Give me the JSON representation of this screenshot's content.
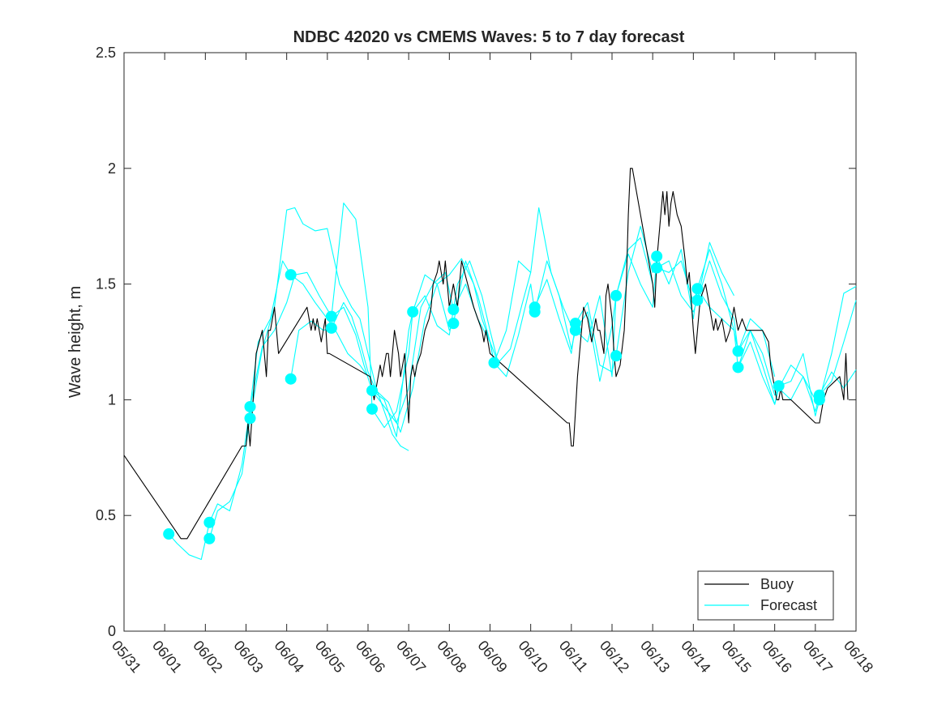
{
  "chart_data": {
    "type": "line",
    "title": "NDBC 42020 vs CMEMS Waves: 5 to 7 day forecast",
    "xlabel": "",
    "ylabel": "Wave height, m",
    "xlim": [
      0,
      18
    ],
    "ylim": [
      0,
      2.5
    ],
    "x_ticks": [
      {
        "value": 0,
        "label": "05/31"
      },
      {
        "value": 1,
        "label": "06/01"
      },
      {
        "value": 2,
        "label": "06/02"
      },
      {
        "value": 3,
        "label": "06/03"
      },
      {
        "value": 4,
        "label": "06/04"
      },
      {
        "value": 5,
        "label": "06/05"
      },
      {
        "value": 6,
        "label": "06/06"
      },
      {
        "value": 7,
        "label": "06/07"
      },
      {
        "value": 8,
        "label": "06/08"
      },
      {
        "value": 9,
        "label": "06/09"
      },
      {
        "value": 10,
        "label": "06/10"
      },
      {
        "value": 11,
        "label": "06/11"
      },
      {
        "value": 12,
        "label": "06/12"
      },
      {
        "value": 13,
        "label": "06/13"
      },
      {
        "value": 14,
        "label": "06/14"
      },
      {
        "value": 15,
        "label": "06/15"
      },
      {
        "value": 16,
        "label": "06/16"
      },
      {
        "value": 17,
        "label": "06/17"
      },
      {
        "value": 18,
        "label": "06/18"
      }
    ],
    "y_ticks": [
      {
        "value": 0,
        "label": "0"
      },
      {
        "value": 0.5,
        "label": "0.5"
      },
      {
        "value": 1,
        "label": "1"
      },
      {
        "value": 1.5,
        "label": "1.5"
      },
      {
        "value": 2,
        "label": "2"
      },
      {
        "value": 2.5,
        "label": "2.5"
      }
    ],
    "grid": false,
    "legend": {
      "position": "bottom-right",
      "entries": [
        "Buoy",
        "Forecast"
      ]
    },
    "colors": {
      "buoy": "#000000",
      "forecast": "#00ffff"
    },
    "series": [
      {
        "name": "Buoy",
        "style": "line",
        "x": [
          0,
          1.4,
          1.55,
          2.9,
          3.0,
          3.05,
          3.1,
          3.25,
          3.4,
          3.5,
          3.55,
          3.6,
          3.7,
          3.8,
          4.5,
          4.55,
          4.6,
          4.65,
          4.7,
          4.75,
          4.8,
          4.85,
          4.9,
          4.95,
          5.0,
          5.05,
          6.05,
          6.15,
          6.25,
          6.3,
          6.35,
          6.45,
          6.5,
          6.55,
          6.6,
          6.65,
          6.75,
          6.8,
          6.9,
          7.0,
          7.05,
          7.1,
          7.15,
          7.2,
          7.3,
          7.4,
          7.5,
          7.55,
          7.6,
          7.7,
          7.75,
          7.8,
          7.85,
          7.9,
          8.0,
          8.1,
          8.15,
          8.2,
          8.3,
          8.45,
          8.6,
          8.7,
          8.8,
          8.85,
          8.9,
          9.0,
          10.9,
          10.95,
          11.0,
          11.05,
          11.1,
          11.15,
          11.2,
          11.25,
          11.3,
          11.4,
          11.45,
          11.5,
          11.6,
          11.65,
          11.7,
          11.8,
          11.85,
          11.9,
          12.0,
          12.05,
          12.1,
          12.2,
          12.3,
          12.35,
          12.4,
          12.45,
          12.5,
          13.0,
          13.05,
          13.1,
          13.2,
          13.25,
          13.3,
          13.35,
          13.4,
          13.45,
          13.5,
          13.6,
          13.7,
          13.8,
          13.85,
          13.9,
          14.0,
          14.05,
          14.1,
          14.15,
          14.2,
          14.3,
          14.35,
          14.4,
          14.5,
          14.55,
          14.6,
          14.7,
          14.75,
          14.8,
          14.9,
          15.0,
          15.1,
          15.2,
          15.3,
          15.5,
          15.7,
          15.85,
          15.9,
          15.95,
          16.0,
          16.05,
          16.1,
          16.15,
          16.2,
          16.3,
          16.4,
          17.0,
          17.05,
          17.1,
          17.2,
          17.3,
          17.6,
          17.7,
          17.75,
          17.8
        ],
        "values": [
          0.76,
          0.4,
          0.4,
          0.8,
          0.8,
          0.9,
          0.8,
          1.2,
          1.3,
          1.1,
          1.3,
          1.3,
          1.4,
          1.2,
          1.4,
          1.35,
          1.3,
          1.35,
          1.3,
          1.35,
          1.3,
          1.25,
          1.3,
          1.35,
          1.2,
          1.2,
          1.1,
          1.0,
          1.1,
          1.15,
          1.1,
          1.2,
          1.2,
          1.1,
          1.2,
          1.3,
          1.2,
          1.1,
          1.2,
          0.9,
          1.1,
          1.15,
          1.1,
          1.15,
          1.2,
          1.3,
          1.35,
          1.4,
          1.5,
          1.55,
          1.6,
          1.55,
          1.5,
          1.6,
          1.4,
          1.5,
          1.45,
          1.4,
          1.6,
          1.5,
          1.4,
          1.35,
          1.3,
          1.25,
          1.3,
          1.2,
          0.9,
          0.9,
          0.8,
          0.8,
          0.95,
          1.1,
          1.2,
          1.3,
          1.4,
          1.35,
          1.3,
          1.25,
          1.35,
          1.3,
          1.3,
          1.2,
          1.45,
          1.5,
          1.35,
          1.2,
          1.1,
          1.15,
          1.3,
          1.5,
          1.8,
          2.0,
          2.0,
          1.5,
          1.4,
          1.6,
          1.8,
          1.9,
          1.8,
          1.9,
          1.75,
          1.85,
          1.9,
          1.8,
          1.75,
          1.6,
          1.5,
          1.55,
          1.3,
          1.2,
          1.3,
          1.4,
          1.45,
          1.5,
          1.45,
          1.4,
          1.3,
          1.35,
          1.3,
          1.35,
          1.3,
          1.25,
          1.3,
          1.4,
          1.3,
          1.35,
          1.3,
          1.3,
          1.3,
          1.25,
          1.15,
          1.1,
          1.05,
          1.0,
          1.0,
          1.05,
          1.0,
          1.0,
          1.0,
          0.9,
          0.9,
          0.9,
          1.0,
          1.05,
          1.1,
          1.0,
          1.2,
          1.0
        ]
      },
      {
        "name": "Forecast",
        "style": "line",
        "x": [
          1.1,
          1.3,
          1.6,
          1.9,
          2.1,
          2.3,
          2.6,
          2.9,
          3.1,
          3.3,
          3.6,
          3.9,
          4.1,
          4.4,
          4.7,
          5.0,
          5.2,
          5.5,
          5.8,
          6.0
        ],
        "values": [
          0.42,
          0.38,
          0.33,
          0.31,
          0.47,
          0.55,
          0.52,
          0.72,
          0.97,
          1.25,
          1.35,
          1.6,
          1.54,
          1.5,
          1.42,
          1.35,
          1.3,
          1.2,
          1.15,
          1.1
        ]
      },
      {
        "name": "Forecast",
        "style": "line",
        "x": [
          2.1,
          2.3,
          2.6,
          2.9,
          3.1,
          3.4,
          3.7,
          4.0,
          4.2,
          4.4,
          4.7,
          5.0,
          5.3,
          5.6,
          5.8,
          6.0,
          6.2,
          6.4,
          6.6,
          6.8,
          7.0
        ],
        "values": [
          0.4,
          0.52,
          0.56,
          0.68,
          0.92,
          1.22,
          1.4,
          1.82,
          1.83,
          1.76,
          1.73,
          1.74,
          1.5,
          1.4,
          1.35,
          1.2,
          1.05,
          0.95,
          0.85,
          0.8,
          0.78
        ]
      },
      {
        "name": "Forecast",
        "style": "line",
        "x": [
          3.1,
          3.4,
          3.7,
          4.0,
          4.2,
          4.5,
          4.8,
          5.1,
          5.4,
          5.7,
          5.9,
          6.1,
          6.4,
          6.7,
          7.0,
          7.3,
          7.6,
          7.9,
          8.1
        ],
        "values": [
          0.97,
          1.23,
          1.3,
          1.42,
          1.54,
          1.55,
          1.45,
          1.36,
          1.4,
          1.28,
          1.15,
          1.04,
          0.97,
          0.9,
          1.05,
          1.4,
          1.5,
          1.55,
          1.39
        ]
      },
      {
        "name": "Forecast",
        "style": "line",
        "x": [
          4.1,
          4.3,
          4.6,
          4.9,
          5.1,
          5.4,
          5.6,
          5.8,
          6.0,
          6.2,
          6.5,
          6.8,
          7.1,
          7.4,
          7.7,
          8.0,
          8.3,
          8.6,
          8.8,
          9.0,
          9.2
        ],
        "values": [
          1.09,
          1.3,
          1.34,
          1.3,
          1.31,
          1.42,
          1.36,
          1.25,
          1.12,
          1.04,
          0.99,
          0.86,
          1.05,
          1.35,
          1.5,
          1.54,
          1.61,
          1.5,
          1.35,
          1.25,
          1.16
        ]
      },
      {
        "name": "Forecast",
        "style": "line",
        "x": [
          5.1,
          5.4,
          5.7,
          6.0,
          6.1,
          6.4,
          6.7,
          7.0,
          7.1,
          7.4,
          7.7,
          8.0,
          8.2,
          8.5,
          8.8,
          9.0,
          9.2,
          9.5,
          9.8,
          10.0
        ],
        "values": [
          1.36,
          1.85,
          1.78,
          1.4,
          0.96,
          0.88,
          0.95,
          1.2,
          1.38,
          1.45,
          1.32,
          1.28,
          1.5,
          1.6,
          1.45,
          1.3,
          1.16,
          1.22,
          1.42,
          1.55
        ]
      },
      {
        "name": "Forecast",
        "style": "line",
        "x": [
          6.1,
          6.4,
          6.7,
          7.0,
          7.1,
          7.4,
          7.7,
          8.0,
          8.1,
          8.4,
          8.7,
          9.0,
          9.1,
          9.4,
          9.7,
          10.0,
          10.2,
          10.5,
          10.8,
          11.0
        ],
        "values": [
          1.04,
          1.0,
          0.84,
          1.3,
          1.38,
          1.54,
          1.5,
          1.3,
          1.33,
          1.6,
          1.45,
          1.25,
          1.16,
          1.3,
          1.6,
          1.55,
          1.83,
          1.55,
          1.4,
          1.32
        ]
      },
      {
        "name": "Forecast",
        "style": "line",
        "x": [
          8.1,
          8.4,
          8.7,
          9.0,
          9.1,
          9.4,
          9.7,
          10.0,
          10.1,
          10.4,
          10.7,
          11.0,
          11.1,
          11.4,
          11.7,
          12.0,
          12.1,
          12.4,
          12.7,
          13.0
        ],
        "values": [
          1.39,
          1.5,
          1.35,
          1.25,
          1.16,
          1.1,
          1.28,
          1.5,
          1.38,
          1.6,
          1.45,
          1.22,
          1.3,
          1.25,
          1.45,
          1.1,
          1.45,
          1.65,
          1.7,
          1.5
        ]
      },
      {
        "name": "Forecast",
        "style": "line",
        "x": [
          10.1,
          10.4,
          10.7,
          11.0,
          11.1,
          11.4,
          11.7,
          12.0,
          12.1,
          12.4,
          12.7,
          13.0,
          13.1,
          13.4,
          13.7,
          14.0,
          14.1,
          14.4,
          14.7,
          15.0
        ],
        "values": [
          1.4,
          1.52,
          1.35,
          1.2,
          1.33,
          1.42,
          1.15,
          1.12,
          1.19,
          1.55,
          1.75,
          1.55,
          1.57,
          1.6,
          1.45,
          1.38,
          1.43,
          1.68,
          1.55,
          1.45
        ]
      },
      {
        "name": "Forecast",
        "style": "line",
        "x": [
          11.1,
          11.4,
          11.7,
          12.0,
          12.1,
          12.4,
          12.7,
          13.0,
          13.1,
          13.4,
          13.7,
          14.0,
          14.1,
          14.4,
          14.7,
          15.0,
          15.1,
          15.4,
          15.7,
          16.0
        ],
        "values": [
          1.3,
          1.38,
          1.08,
          1.32,
          1.45,
          1.63,
          1.5,
          1.4,
          1.62,
          1.5,
          1.65,
          1.35,
          1.48,
          1.4,
          1.35,
          1.3,
          1.21,
          1.35,
          1.3,
          1.1
        ]
      },
      {
        "name": "Forecast",
        "style": "line",
        "x": [
          13.1,
          13.4,
          13.7,
          14.0,
          14.1,
          14.4,
          14.7,
          15.0,
          15.1,
          15.4,
          15.7,
          16.0,
          16.1,
          16.4,
          16.7,
          17.0,
          17.1,
          17.4,
          17.7,
          18.0
        ],
        "values": [
          1.57,
          1.55,
          1.6,
          1.42,
          1.48,
          1.65,
          1.5,
          1.3,
          1.14,
          1.3,
          1.15,
          0.98,
          1.06,
          1.08,
          1.2,
          0.93,
          1.0,
          1.2,
          1.46,
          1.49
        ]
      },
      {
        "name": "Forecast",
        "style": "line",
        "x": [
          14.1,
          14.4,
          14.7,
          15.0,
          15.1,
          15.4,
          15.7,
          16.0,
          16.1,
          16.4,
          16.7,
          17.0,
          17.1,
          17.4,
          17.7,
          18.0
        ],
        "values": [
          1.43,
          1.6,
          1.45,
          1.35,
          1.21,
          1.3,
          1.2,
          1.02,
          1.05,
          1.15,
          1.1,
          0.95,
          1.02,
          1.08,
          1.25,
          1.43
        ]
      },
      {
        "name": "Forecast",
        "style": "line",
        "x": [
          15.1,
          15.4,
          15.7,
          16.0,
          16.1,
          16.4,
          16.7,
          17.0,
          17.1,
          17.4,
          17.7,
          18.0
        ],
        "values": [
          1.14,
          1.25,
          1.1,
          0.98,
          1.05,
          1.0,
          1.1,
          1.0,
          1.02,
          1.12,
          1.05,
          1.13
        ]
      },
      {
        "name": "Forecast",
        "style": "markers",
        "x": [
          1.1,
          2.1,
          2.1,
          3.1,
          3.1,
          4.1,
          4.1,
          5.1,
          5.1,
          6.1,
          6.1,
          7.1,
          8.1,
          8.1,
          9.1,
          10.1,
          10.1,
          11.1,
          11.1,
          12.1,
          12.1,
          13.1,
          13.1,
          14.1,
          14.1,
          15.1,
          15.1,
          16.1,
          17.1,
          17.1
        ],
        "values": [
          0.42,
          0.47,
          0.4,
          0.97,
          0.92,
          1.54,
          1.09,
          1.36,
          1.31,
          1.04,
          0.96,
          1.38,
          1.39,
          1.33,
          1.16,
          1.4,
          1.38,
          1.33,
          1.3,
          1.45,
          1.19,
          1.62,
          1.57,
          1.48,
          1.43,
          1.21,
          1.14,
          1.06,
          1.02,
          1.0
        ]
      }
    ]
  }
}
